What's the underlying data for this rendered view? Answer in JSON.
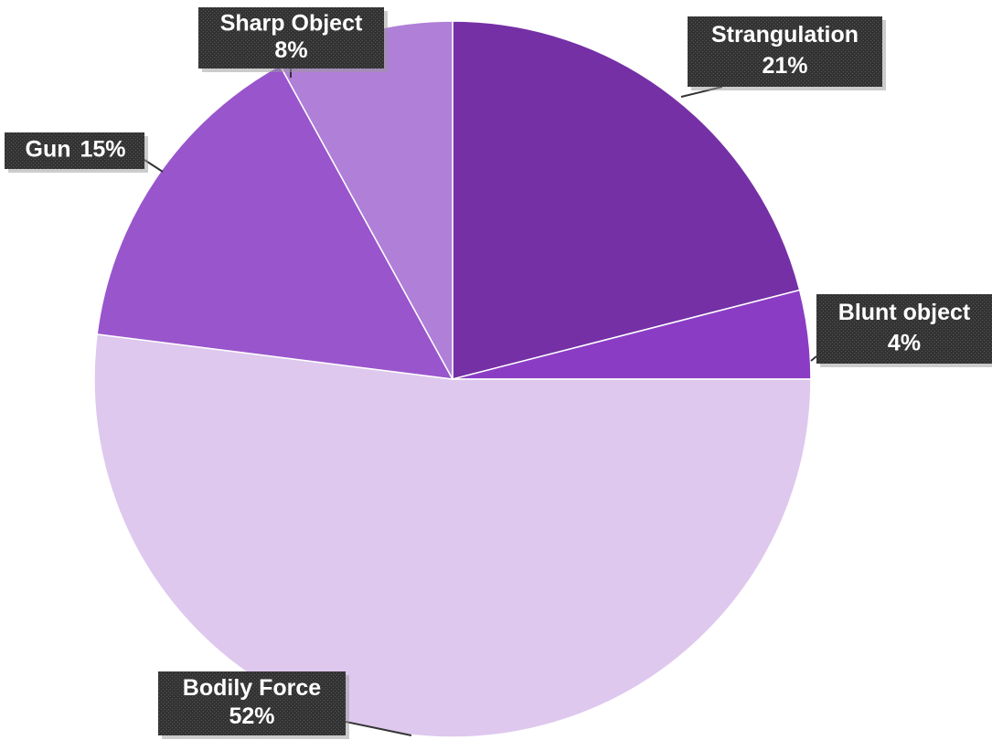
{
  "chart_data": {
    "type": "pie",
    "categories": [
      "Strangulation",
      "Blunt object",
      "Bodily Force",
      "Gun",
      "Sharp Object"
    ],
    "values": [
      21,
      4,
      52,
      15,
      8
    ],
    "value_labels": [
      "21%",
      "4%",
      "52%",
      "15%",
      "8%"
    ],
    "colors": [
      "#7530a6",
      "#8a3dc4",
      "#dec8ee",
      "#9955cc",
      "#b07fd8"
    ]
  }
}
